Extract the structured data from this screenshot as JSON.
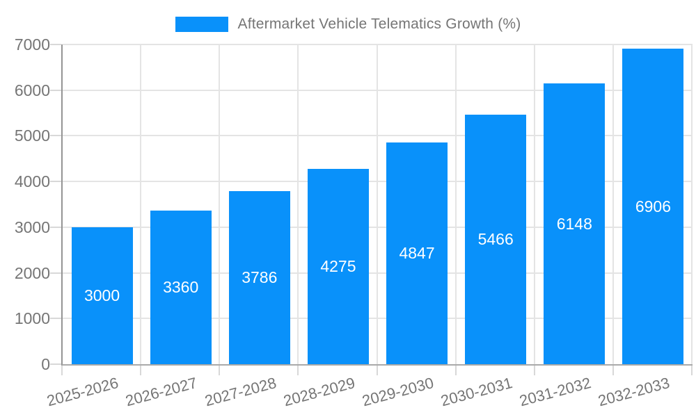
{
  "chart_data": {
    "type": "bar",
    "title": "",
    "legend_label": "Aftermarket Vehicle Telematics Growth (%)",
    "legend_position": "top-center",
    "categories": [
      "2025-2026",
      "2026-2027",
      "2027-2028",
      "2028-2029",
      "2029-2030",
      "2030-2031",
      "2031-2032",
      "2032-2033"
    ],
    "values": [
      3000,
      3360,
      3786,
      4275,
      4847,
      5466,
      6148,
      6906
    ],
    "value_labels": [
      "3000",
      "3360",
      "3786",
      "4275",
      "4847",
      "5466",
      "6148",
      "6906"
    ],
    "xlabel": "",
    "ylabel": "",
    "ylim": [
      0,
      7000
    ],
    "yticks": [
      0,
      1000,
      2000,
      3000,
      4000,
      5000,
      6000,
      7000
    ],
    "grid": true,
    "colors": {
      "bar": "#0991fa",
      "value_label": "#ffffff",
      "axis_line": "#949494",
      "gridline": "#e4e4e4",
      "tick": "#d8d8d8",
      "tick_label": "#757575",
      "legend_text": "#757575"
    }
  }
}
